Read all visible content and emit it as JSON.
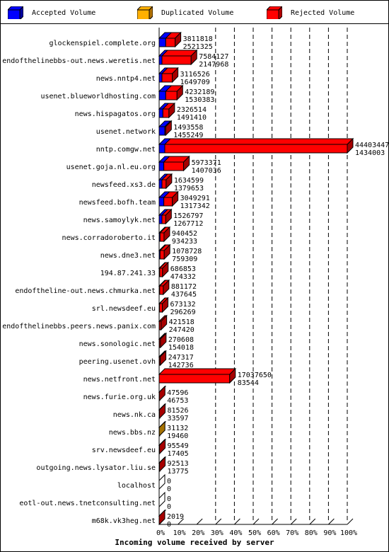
{
  "legend": {
    "accepted": "Accepted Volume",
    "duplicated": "Duplicated Volume",
    "rejected": "Rejected Volume"
  },
  "colors": {
    "accepted": "#0000ff",
    "duplicated": "#ffb000",
    "rejected": "#ff0000",
    "grid": "#000000"
  },
  "chart_data": {
    "type": "bar",
    "orientation": "horizontal",
    "stacked": true,
    "xlabel": "Incoming volume received by server",
    "x_ticks": [
      "0%",
      "10%",
      "20%",
      "30%",
      "40%",
      "50%",
      "60%",
      "70%",
      "80%",
      "90%",
      "100%"
    ],
    "xlim": [
      0,
      100
    ],
    "categories": [
      "glockenspiel.complete.org",
      "endofthelinebbs-out.news.weretis.net",
      "news.nntp4.net",
      "usenet.blueworldhosting.com",
      "news.hispagatos.org",
      "usenet.network",
      "nntp.comgw.net",
      "usenet.goja.nl.eu.org",
      "newsfeed.xs3.de",
      "newsfeed.bofh.team",
      "news.samoylyk.net",
      "news.corradoroberto.it",
      "news.dne3.net",
      "194.87.241.33",
      "endoftheline-out.news.chmurka.net",
      "srl.newsdeef.eu",
      "endofthelinebbs.peers.news.panix.com",
      "news.sonologic.net",
      "peering.usenet.ovh",
      "news.netfront.net",
      "news.furie.org.uk",
      "news.nk.ca",
      "news.bbs.nz",
      "srv.newsdeef.eu",
      "outgoing.news.lysator.liu.se",
      "localhost",
      "eotl-out.news.tnetconsulting.net",
      "m68k.vk3heg.net"
    ],
    "volume_labels": [
      "3811818",
      "7584127",
      "3116526",
      "4232189",
      "2326514",
      "1493558",
      "44403447",
      "5973371",
      "1634599",
      "3049291",
      "1526797",
      "940452",
      "1078728",
      "686853",
      "881172",
      "673132",
      "421518",
      "270608",
      "247317",
      "17037650",
      "47596",
      "81526",
      "31132",
      "95549",
      "92513",
      "0",
      "0",
      "2019"
    ],
    "count_labels": [
      "2521325",
      "2147968",
      "1649709",
      "1530383",
      "1491410",
      "1455249",
      "1434003",
      "1407036",
      "1379653",
      "1317342",
      "1267712",
      "934233",
      "759309",
      "474332",
      "437645",
      "296269",
      "247420",
      "154018",
      "142736",
      "83544",
      "46753",
      "33597",
      "19460",
      "17405",
      "13775",
      "0",
      "0",
      "0"
    ],
    "series": [
      {
        "name": "Accepted Volume",
        "values": [
          3.5,
          1.5,
          1.5,
          3.5,
          2.0,
          3.0,
          3.0,
          2.5,
          1.5,
          2.5,
          1.5,
          0.5,
          0.5,
          0.3,
          0.3,
          0.2,
          0.1,
          0.1,
          0.1,
          0,
          0,
          0,
          0,
          0,
          0,
          0,
          0,
          0
        ]
      },
      {
        "name": "Duplicated Volume",
        "values": [
          0,
          0,
          0,
          0,
          0,
          0,
          0,
          0,
          0,
          0,
          0,
          0,
          0,
          0,
          0,
          0,
          0,
          0,
          0,
          0,
          0,
          0,
          0.07,
          0,
          0,
          0,
          0,
          0
        ]
      },
      {
        "name": "Rejected Volume",
        "values": [
          5.0,
          15.5,
          5.5,
          6.0,
          3.2,
          0.5,
          97.0,
          10.5,
          2.2,
          4.5,
          2.0,
          2.1,
          2.2,
          1.5,
          1.9,
          1.5,
          0.9,
          0.6,
          0.5,
          37.5,
          0.1,
          0.18,
          0,
          0.21,
          0.2,
          0,
          0,
          0.004
        ]
      }
    ],
    "grid": true,
    "legend_position": "top"
  }
}
